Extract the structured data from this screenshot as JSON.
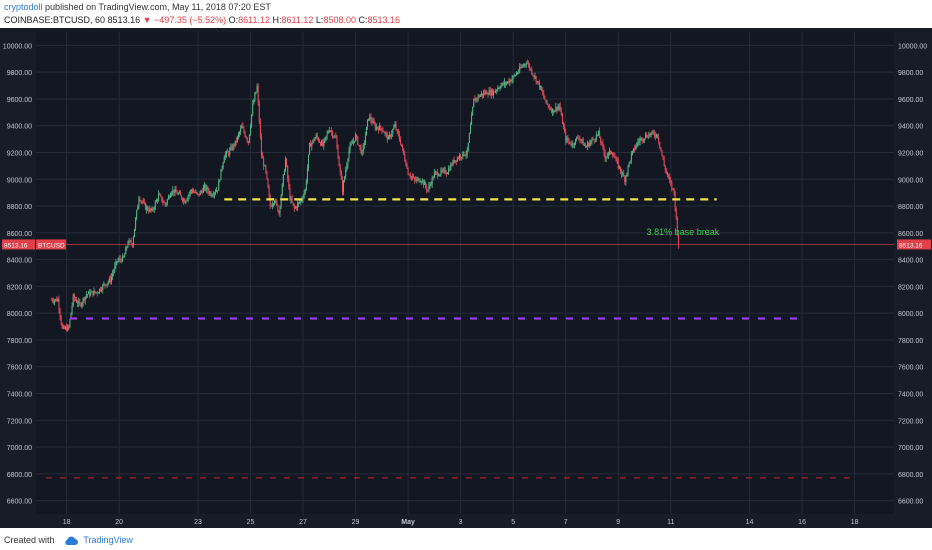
{
  "header": {
    "author": "cryptodoll",
    "published": "published on TradingView.com, May 11, 2018 07:20 EST",
    "symbol": "COINBASE:BTCUSD, 60",
    "last": "8513.16",
    "change": "−497.35 (−5.52%)",
    "o_label": "O:",
    "o_value": "8611.12",
    "h_label": "H:",
    "h_value": "8611.12",
    "l_label": "L:",
    "l_value": "8508.00",
    "c_label": "C:",
    "c_value": "8513.16"
  },
  "footer": {
    "created_with": "Created with",
    "brand": "TradingView"
  },
  "colors": {
    "background": "#131722",
    "grid": "#262b3a",
    "axis_text": "#c2c6d0",
    "up": "#53b987",
    "down": "#eb4d5c",
    "support_yellow": "#f2e34a",
    "support_purple": "#9c3cf0",
    "support_red": "#c92a2a",
    "price_line": "#e0404a",
    "annotation": "#3cd44a"
  },
  "chart_data": {
    "type": "candlestick",
    "symbol": "BTCUSD",
    "exchange": "COINBASE",
    "timeframe": "60",
    "ylim": [
      6500,
      10100
    ],
    "y_ticks": [
      "10000.00",
      "9800.00",
      "9600.00",
      "9400.00",
      "9200.00",
      "9000.00",
      "8800.00",
      "8600.00",
      "8400.00",
      "8200.00",
      "8000.00",
      "7800.00",
      "7600.00",
      "7400.00",
      "7200.00",
      "7000.00",
      "6800.00",
      "6600.00"
    ],
    "x_ticks": [
      "18",
      "20",
      "23",
      "25",
      "27",
      "29",
      "May",
      "3",
      "5",
      "7",
      "9",
      "11",
      "14",
      "16",
      "18"
    ],
    "price_path": [
      [
        "Apr 17 09:00",
        8100
      ],
      [
        "Apr 17 16:00",
        8100
      ],
      [
        "Apr 17 20:00",
        7880
      ],
      [
        "Apr 18 02:00",
        7890
      ],
      [
        "Apr 18 06:00",
        8120
      ],
      [
        "Apr 18 12:00",
        8060
      ],
      [
        "Apr 18 18:00",
        8140
      ],
      [
        "Apr 19 04:00",
        8160
      ],
      [
        "Apr 19 10:00",
        8210
      ],
      [
        "Apr 19 16:00",
        8250
      ],
      [
        "Apr 19 22:00",
        8390
      ],
      [
        "Apr 20 04:00",
        8410
      ],
      [
        "Apr 20 08:00",
        8530
      ],
      [
        "Apr 20 12:00",
        8520
      ],
      [
        "Apr 20 18:00",
        8870
      ],
      [
        "Apr 21 00:00",
        8790
      ],
      [
        "Apr 21 06:00",
        8760
      ],
      [
        "Apr 21 12:00",
        8880
      ],
      [
        "Apr 21 18:00",
        8810
      ],
      [
        "Apr 22 00:00",
        8920
      ],
      [
        "Apr 22 06:00",
        8890
      ],
      [
        "Apr 22 12:00",
        8840
      ],
      [
        "Apr 22 18:00",
        8920
      ],
      [
        "Apr 23 00:00",
        8880
      ],
      [
        "Apr 23 06:00",
        8940
      ],
      [
        "Apr 23 12:00",
        8890
      ],
      [
        "Apr 23 18:00",
        8930
      ],
      [
        "Apr 24 00:00",
        9180
      ],
      [
        "Apr 24 04:00",
        9200
      ],
      [
        "Apr 24 10:00",
        9270
      ],
      [
        "Apr 24 16:00",
        9390
      ],
      [
        "Apr 24 22:00",
        9280
      ],
      [
        "Apr 25 02:00",
        9550
      ],
      [
        "Apr 25 06:00",
        9690
      ],
      [
        "Apr 25 10:00",
        9180
      ],
      [
        "Apr 25 14:00",
        9050
      ],
      [
        "Apr 25 18:00",
        8800
      ],
      [
        "Apr 25 22:00",
        8850
      ],
      [
        "Apr 26 02:00",
        8750
      ],
      [
        "Apr 26 08:00",
        9150
      ],
      [
        "Apr 26 12:00",
        8860
      ],
      [
        "Apr 26 16:00",
        8780
      ],
      [
        "Apr 26 22:00",
        8840
      ],
      [
        "Apr 27 02:00",
        8920
      ],
      [
        "Apr 27 06:00",
        9250
      ],
      [
        "Apr 27 12:00",
        9320
      ],
      [
        "Apr 27 18:00",
        9250
      ],
      [
        "Apr 28 00:00",
        9380
      ],
      [
        "Apr 28 06:00",
        9300
      ],
      [
        "Apr 28 12:00",
        8920
      ],
      [
        "Apr 28 18:00",
        9220
      ],
      [
        "Apr 29 00:00",
        9320
      ],
      [
        "Apr 29 06:00",
        9190
      ],
      [
        "Apr 29 12:00",
        9470
      ],
      [
        "Apr 29 18:00",
        9390
      ],
      [
        "Apr 30 00:00",
        9380
      ],
      [
        "Apr 30 06:00",
        9300
      ],
      [
        "Apr 30 12:00",
        9400
      ],
      [
        "Apr 30 18:00",
        9250
      ],
      [
        "May 1 00:00",
        9050
      ],
      [
        "May 1 06:00",
        8990
      ],
      [
        "May 1 12:00",
        9000
      ],
      [
        "May 1 18:00",
        8920
      ],
      [
        "May 2 00:00",
        9040
      ],
      [
        "May 2 06:00",
        9050
      ],
      [
        "May 2 12:00",
        9060
      ],
      [
        "May 2 18:00",
        9140
      ],
      [
        "May 3 00:00",
        9180
      ],
      [
        "May 3 06:00",
        9200
      ],
      [
        "May 3 12:00",
        9590
      ],
      [
        "May 3 18:00",
        9630
      ],
      [
        "May 4 00:00",
        9650
      ],
      [
        "May 4 06:00",
        9650
      ],
      [
        "May 4 12:00",
        9700
      ],
      [
        "May 4 18:00",
        9720
      ],
      [
        "May 5 00:00",
        9760
      ],
      [
        "May 5 06:00",
        9820
      ],
      [
        "May 5 12:00",
        9880
      ],
      [
        "May 5 18:00",
        9790
      ],
      [
        "May 6 00:00",
        9700
      ],
      [
        "May 6 06:00",
        9570
      ],
      [
        "May 6 12:00",
        9510
      ],
      [
        "May 6 18:00",
        9550
      ],
      [
        "May 7 00:00",
        9300
      ],
      [
        "May 7 06:00",
        9260
      ],
      [
        "May 7 12:00",
        9320
      ],
      [
        "May 7 18:00",
        9240
      ],
      [
        "May 8 00:00",
        9290
      ],
      [
        "May 8 06:00",
        9340
      ],
      [
        "May 8 12:00",
        9170
      ],
      [
        "May 8 18:00",
        9210
      ],
      [
        "May 9 00:00",
        9100
      ],
      [
        "May 9 06:00",
        9000
      ],
      [
        "May 9 12:00",
        9180
      ],
      [
        "May 9 18:00",
        9280
      ],
      [
        "May 10 00:00",
        9320
      ],
      [
        "May 10 06:00",
        9340
      ],
      [
        "May 10 12:00",
        9330
      ],
      [
        "May 10 18:00",
        9100
      ],
      [
        "May 11 00:00",
        8960
      ],
      [
        "May 11 03:00",
        8900
      ],
      [
        "May 11 05:00",
        8700
      ],
      [
        "May 11 07:00",
        8513
      ]
    ],
    "horizontal_lines": [
      {
        "style": "dashed",
        "color": "#f2e34a",
        "price": 8850,
        "from": "Apr 24 00:00",
        "to": "May 12 18:00"
      },
      {
        "style": "dashed",
        "color": "#9c3cf0",
        "price": 7960,
        "from": "Apr 18 03:00",
        "to": "May 15 20:00"
      },
      {
        "style": "dashed",
        "color": "#c92a2a",
        "price": 6770,
        "from": "Apr 17 05:00",
        "to": "May 17 20:00"
      }
    ],
    "last_price": {
      "value": "8513.16",
      "label": "BTCUSD"
    },
    "annotation": {
      "text": "3.81% base break",
      "color": "#3cd44a",
      "price": 8585,
      "date": "May 10 02:00"
    }
  }
}
